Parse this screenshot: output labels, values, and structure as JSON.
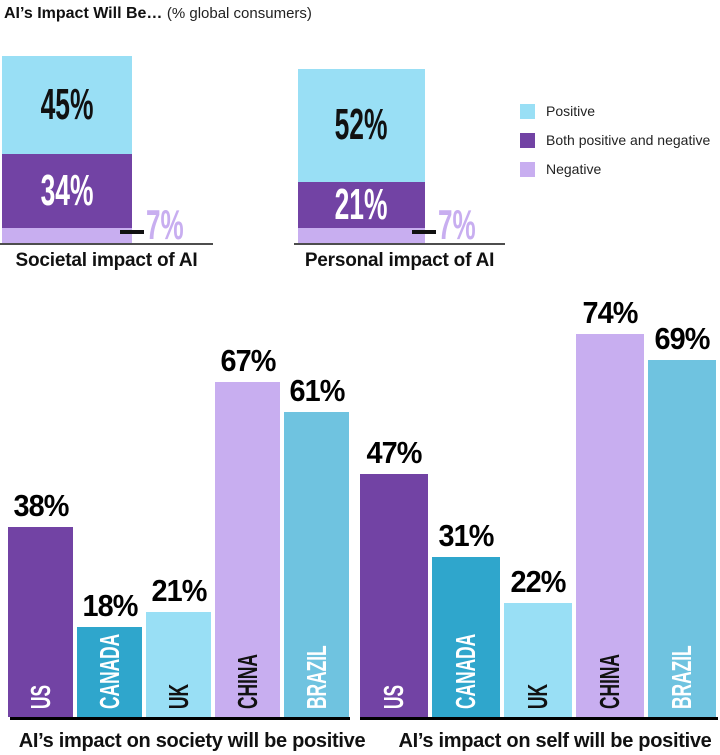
{
  "header": {
    "title_bold": "AI’s Impact Will Be…",
    "title_note": "(% global consumers)"
  },
  "colors": {
    "positive": "#99dff5",
    "both": "#7243a4",
    "negative": "#c8aef0",
    "canada": "#2fa6cc",
    "brazil": "#6fc3e0"
  },
  "legend": {
    "items": [
      {
        "label": "Positive",
        "color": "#99dff5"
      },
      {
        "label": "Both positive and negative",
        "color": "#7243a4"
      },
      {
        "label": "Negative",
        "color": "#c8aef0"
      }
    ]
  },
  "chart_data": [
    {
      "type": "bar",
      "subtype": "stacked",
      "title": "Societal impact of AI",
      "categories": [
        "Positive",
        "Both positive and negative",
        "Negative"
      ],
      "values": [
        45,
        34,
        7
      ],
      "labels": [
        "45%",
        "34%",
        "7%"
      ],
      "ylim": [
        0,
        100
      ]
    },
    {
      "type": "bar",
      "subtype": "stacked",
      "title": "Personal impact of AI",
      "categories": [
        "Positive",
        "Both positive and negative",
        "Negative"
      ],
      "values": [
        52,
        21,
        7
      ],
      "labels": [
        "52%",
        "21%",
        "7%"
      ],
      "ylim": [
        0,
        100
      ]
    },
    {
      "type": "bar",
      "title": "AI’s impact on society will be positive",
      "categories": [
        "US",
        "CANADA",
        "UK",
        "CHINA",
        "BRAZIL"
      ],
      "values": [
        38,
        18,
        21,
        67,
        61
      ],
      "labels": [
        "38%",
        "18%",
        "21%",
        "67%",
        "61%"
      ],
      "ylim": [
        0,
        100
      ]
    },
    {
      "type": "bar",
      "title": "AI’s impact on self will be positive",
      "categories": [
        "US",
        "CANADA",
        "UK",
        "CHINA",
        "BRAZIL"
      ],
      "values": [
        47,
        31,
        22,
        74,
        69
      ],
      "labels": [
        "47%",
        "31%",
        "22%",
        "74%",
        "69%"
      ],
      "ylim": [
        0,
        100
      ]
    }
  ]
}
